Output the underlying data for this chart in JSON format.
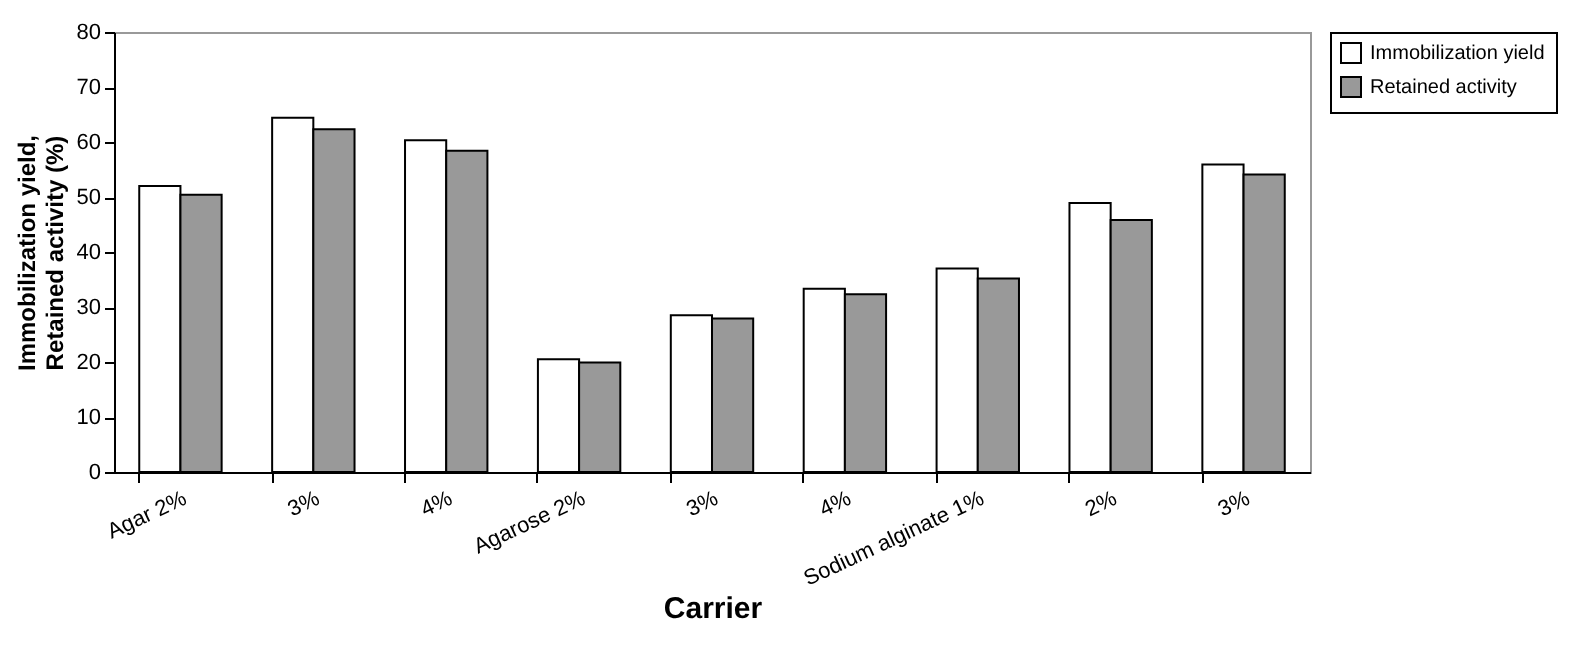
{
  "chart_data": {
    "type": "bar",
    "xlabel": "Carrier",
    "ylabel": "Immobilization yield, Retained activity (%)",
    "categories": [
      "Agar 2%",
      "3%",
      "4%",
      "Agarose 2%",
      "3%",
      "4%",
      "Sodium alginate 1%",
      "2%",
      "3%"
    ],
    "series": [
      {
        "name": "Immobilization yield",
        "color": "#ffffff",
        "values": [
          52,
          64.4,
          60.3,
          20.5,
          28.5,
          33.3,
          37,
          48.9,
          55.9
        ]
      },
      {
        "name": "Retained activity",
        "color": "#999999",
        "values": [
          50.4,
          62.3,
          58.4,
          19.9,
          27.9,
          32.3,
          35.2,
          45.8,
          54.1
        ]
      }
    ],
    "ylim": [
      0,
      80
    ],
    "yticks": [
      0,
      10,
      20,
      30,
      40,
      50,
      60,
      70,
      80
    ],
    "grid": false,
    "legend": "right"
  }
}
